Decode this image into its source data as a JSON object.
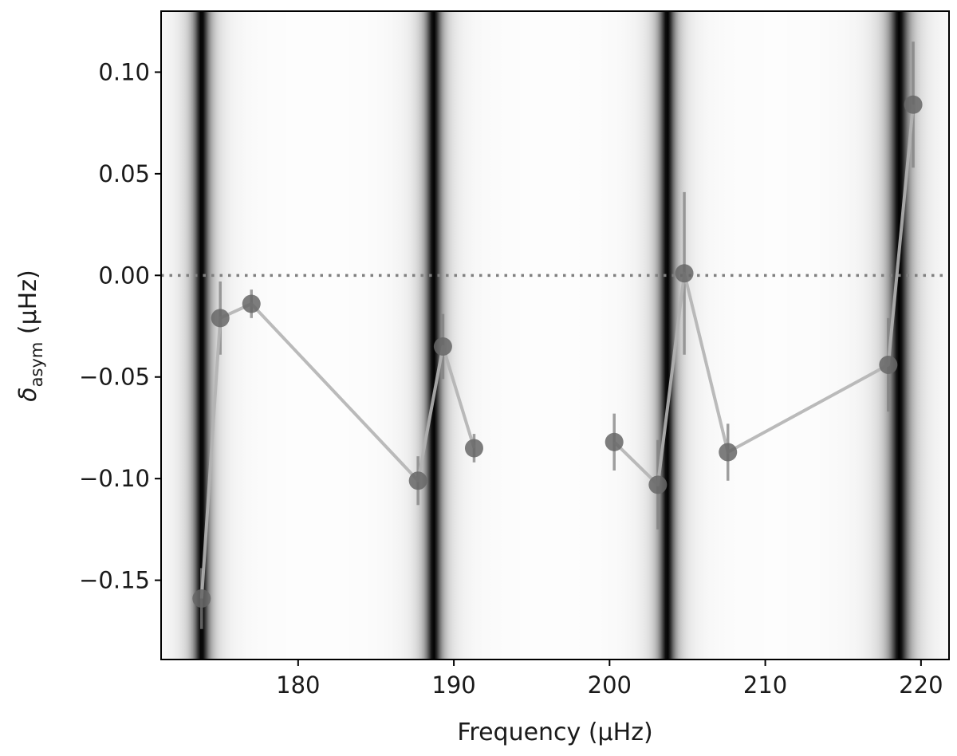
{
  "chart_data": {
    "type": "scatter",
    "xlabel": "Frequency (μHz)",
    "ylabel_parts": {
      "symbol": "δ",
      "subscript": "asym",
      "unit": " (μHz)"
    },
    "xlim": [
      171.2,
      221.8
    ],
    "ylim": [
      -0.189,
      0.13
    ],
    "x_ticks": [
      180,
      190,
      200,
      210,
      220
    ],
    "x_tick_labels": [
      "180",
      "190",
      "200",
      "210",
      "220"
    ],
    "y_ticks": [
      0.1,
      0.05,
      0.0,
      -0.05,
      -0.1,
      -0.15
    ],
    "y_tick_labels": [
      "0.10",
      "0.05",
      "0.00",
      "−0.05",
      "−0.10",
      "−0.15"
    ],
    "reference_line_y": 0.0,
    "grid": false,
    "background_dark_bands": [
      {
        "center": 173.8,
        "width": 0.45
      },
      {
        "center": 188.7,
        "width": 0.45
      },
      {
        "center": 203.7,
        "width": 0.45
      },
      {
        "center": 218.6,
        "width": 0.55
      }
    ],
    "colors": {
      "line": "#b3b3b3",
      "marker": "#666666",
      "errorbar": "#7f7f7f",
      "reference_line": "#808080",
      "band_dark": "#000000",
      "band_light": "#ffffff"
    },
    "segments": [
      {
        "points": [
          {
            "x": 173.8,
            "y": -0.159,
            "err": 0.015
          },
          {
            "x": 175.0,
            "y": -0.021,
            "err": 0.018
          },
          {
            "x": 177.0,
            "y": -0.014,
            "err": 0.007
          },
          {
            "x": 187.7,
            "y": -0.101,
            "err": 0.012
          },
          {
            "x": 189.3,
            "y": -0.035,
            "err": 0.016
          },
          {
            "x": 191.3,
            "y": -0.085,
            "err": 0.007
          }
        ]
      },
      {
        "points": [
          {
            "x": 200.3,
            "y": -0.082,
            "err": 0.014
          },
          {
            "x": 203.1,
            "y": -0.103,
            "err": 0.022
          },
          {
            "x": 204.8,
            "y": 0.001,
            "err": 0.04
          },
          {
            "x": 207.6,
            "y": -0.087,
            "err": 0.014
          },
          {
            "x": 217.9,
            "y": -0.044,
            "err": 0.023
          },
          {
            "x": 219.5,
            "y": 0.084,
            "err": 0.031
          }
        ]
      }
    ]
  }
}
